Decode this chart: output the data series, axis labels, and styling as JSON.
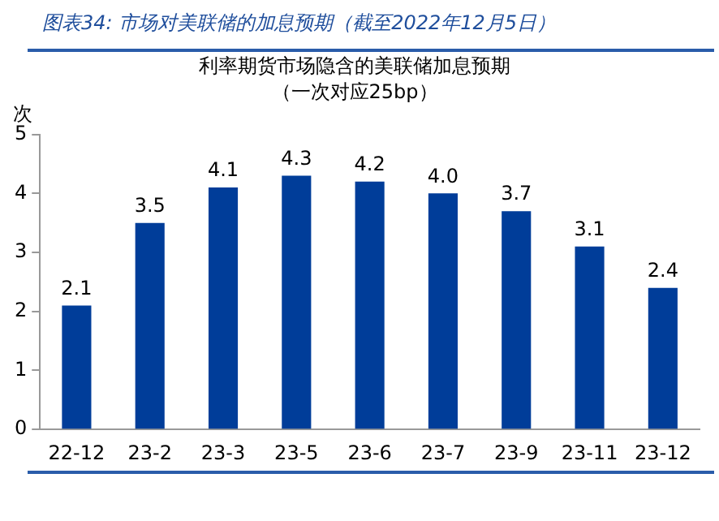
{
  "chart_data": {
    "type": "bar",
    "title": "利率期货市场隐含的美联储加息预期",
    "subtitle": "（一次对应25bp）",
    "ylabel": "次",
    "annotations": [
      "图表34:  市场对美联储的加息预期（截至2022年12月5日）"
    ],
    "categories": [
      "22-12",
      "23-2",
      "23-3",
      "23-5",
      "23-6",
      "23-7",
      "23-9",
      "23-11",
      "23-12"
    ],
    "values": [
      2.1,
      3.5,
      4.1,
      4.3,
      4.2,
      4.0,
      3.7,
      3.1,
      2.4
    ],
    "color": "#003d99",
    "ylim": [
      0,
      5
    ],
    "yticks": [
      0,
      1,
      2,
      3,
      4,
      5
    ],
    "grid": false,
    "legend": false,
    "value_labels": [
      "2.1",
      "3.5",
      "4.1",
      "4.3",
      "4.2",
      "4.0",
      "3.7",
      "3.1",
      "2.4"
    ]
  }
}
